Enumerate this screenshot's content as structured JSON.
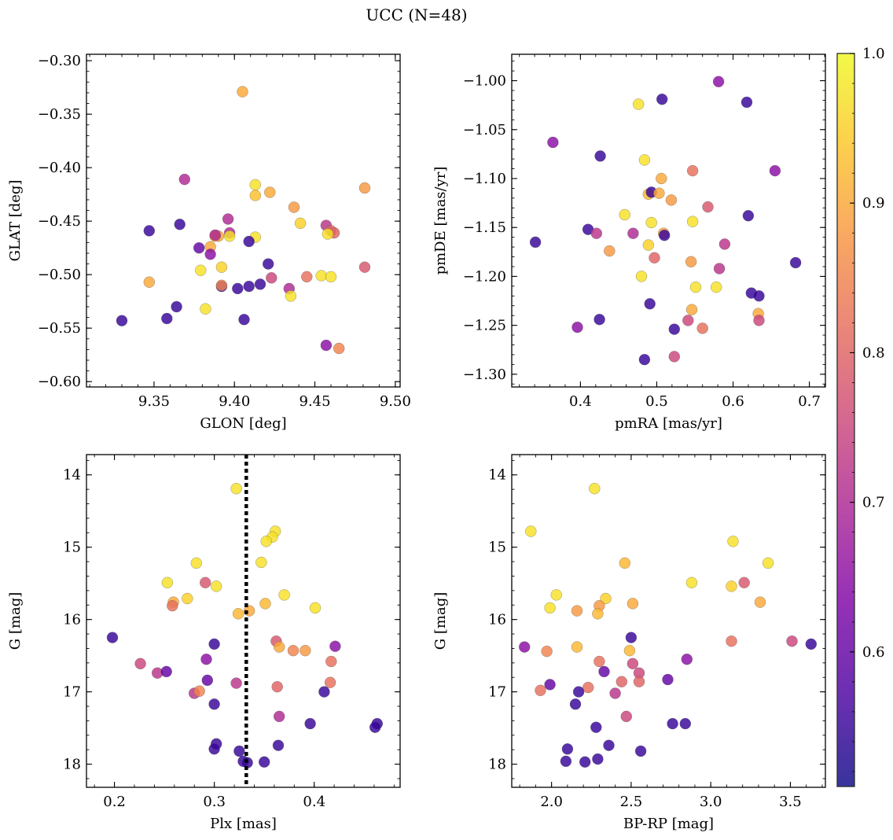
{
  "suptitle": "UCC (N=48)",
  "colorbar": {
    "ticks": [
      0.6,
      0.7,
      0.8,
      0.9,
      1.0
    ],
    "tick_labels": [
      "0.6",
      "0.7",
      "0.8",
      "0.9",
      "1.0"
    ],
    "range": [
      0.51,
      1.0
    ],
    "colormap": "plasma"
  },
  "chart_data": [
    {
      "type": "scatter",
      "xlabel": "GLON [deg]",
      "ylabel": "GLAT [deg]",
      "xlim": [
        9.308,
        9.503
      ],
      "ylim": [
        -0.605,
        -0.294
      ],
      "xticks": [
        9.35,
        9.4,
        9.45,
        9.5
      ],
      "xtick_labels": [
        "9.35",
        "9.40",
        "9.45",
        "9.50"
      ],
      "yticks": [
        -0.3,
        -0.35,
        -0.4,
        -0.45,
        -0.5,
        -0.55,
        -0.6
      ],
      "ytick_labels": [
        "−0.30",
        "−0.35",
        "−0.40",
        "−0.45",
        "−0.50",
        "−0.55",
        "−0.60"
      ],
      "x": [
        9.405,
        9.347,
        9.369,
        9.413,
        9.413,
        9.422,
        9.481,
        9.437,
        9.441,
        9.457,
        9.46,
        9.462,
        9.458,
        9.347,
        9.396,
        9.397,
        9.39,
        9.388,
        9.397,
        9.413,
        9.378,
        9.379,
        9.385,
        9.385,
        9.392,
        9.402,
        9.409,
        9.416,
        9.421,
        9.434,
        9.435,
        9.454,
        9.46,
        9.481,
        9.423,
        9.445,
        9.364,
        9.382,
        9.33,
        9.406,
        9.457,
        9.465,
        9.409,
        9.366,
        9.388,
        9.392,
        9.358,
        9.392
      ],
      "y": [
        -0.329,
        -0.507,
        -0.411,
        -0.416,
        -0.426,
        -0.423,
        -0.419,
        -0.437,
        -0.452,
        -0.454,
        -0.459,
        -0.461,
        -0.462,
        -0.459,
        -0.448,
        -0.461,
        -0.464,
        -0.464,
        -0.464,
        -0.465,
        -0.475,
        -0.496,
        -0.474,
        -0.481,
        -0.511,
        -0.513,
        -0.511,
        -0.509,
        -0.49,
        -0.513,
        -0.52,
        -0.501,
        -0.502,
        -0.493,
        -0.503,
        -0.502,
        -0.53,
        -0.532,
        -0.543,
        -0.542,
        -0.566,
        -0.569,
        -0.469,
        -0.453,
        -0.463,
        -0.493,
        -0.541,
        -0.51
      ],
      "c": [
        0.9,
        0.9,
        0.7,
        0.97,
        0.93,
        0.9,
        0.88,
        0.88,
        0.95,
        0.72,
        0.8,
        0.8,
        0.97,
        0.55,
        0.7,
        0.7,
        0.9,
        0.88,
        0.97,
        0.97,
        0.6,
        0.97,
        0.9,
        0.65,
        0.55,
        0.55,
        0.55,
        0.55,
        0.55,
        0.7,
        0.97,
        0.97,
        0.97,
        0.78,
        0.75,
        0.82,
        0.55,
        0.97,
        0.55,
        0.55,
        0.65,
        0.85,
        0.55,
        0.55,
        0.7,
        0.95,
        0.55,
        0.85
      ]
    },
    {
      "type": "scatter",
      "xlabel": "pmRA [mas/yr]",
      "ylabel": "pmDE [mas/yr]",
      "xlim": [
        0.31,
        0.721
      ],
      "ylim": [
        -1.313,
        -0.973
      ],
      "xticks": [
        0.4,
        0.5,
        0.6,
        0.7
      ],
      "xtick_labels": [
        "0.4",
        "0.5",
        "0.6",
        "0.7"
      ],
      "yticks": [
        -1.0,
        -1.05,
        -1.1,
        -1.15,
        -1.2,
        -1.25,
        -1.3
      ],
      "ytick_labels": [
        "−1.00",
        "−1.05",
        "−1.10",
        "−1.15",
        "−1.20",
        "−1.25",
        "−1.30"
      ],
      "x": [
        0.581,
        0.476,
        0.507,
        0.618,
        0.364,
        0.426,
        0.484,
        0.547,
        0.655,
        0.506,
        0.489,
        0.493,
        0.503,
        0.519,
        0.458,
        0.62,
        0.567,
        0.341,
        0.41,
        0.421,
        0.469,
        0.493,
        0.509,
        0.51,
        0.547,
        0.589,
        0.438,
        0.497,
        0.582,
        0.545,
        0.48,
        0.551,
        0.578,
        0.682,
        0.624,
        0.634,
        0.546,
        0.491,
        0.425,
        0.396,
        0.633,
        0.634,
        0.541,
        0.523,
        0.56,
        0.484,
        0.523,
        0.489
      ],
      "y": [
        -1.001,
        -1.024,
        -1.019,
        -1.022,
        -1.063,
        -1.077,
        -1.081,
        -1.092,
        -1.092,
        -1.1,
        -1.116,
        -1.114,
        -1.115,
        -1.122,
        -1.137,
        -1.138,
        -1.129,
        -1.165,
        -1.152,
        -1.156,
        -1.156,
        -1.145,
        -1.156,
        -1.158,
        -1.144,
        -1.167,
        -1.174,
        -1.181,
        -1.192,
        -1.185,
        -1.2,
        -1.211,
        -1.211,
        -1.186,
        -1.217,
        -1.22,
        -1.234,
        -1.228,
        -1.244,
        -1.252,
        -1.238,
        -1.245,
        -1.245,
        -1.254,
        -1.253,
        -1.285,
        -1.282,
        -1.168
      ],
      "c": [
        0.65,
        0.97,
        0.55,
        0.55,
        0.65,
        0.55,
        0.97,
        0.82,
        0.65,
        0.9,
        0.92,
        0.55,
        0.9,
        0.88,
        0.97,
        0.55,
        0.78,
        0.55,
        0.55,
        0.72,
        0.7,
        0.97,
        0.88,
        0.55,
        0.97,
        0.72,
        0.88,
        0.8,
        0.72,
        0.88,
        0.97,
        0.97,
        0.97,
        0.55,
        0.55,
        0.55,
        0.9,
        0.55,
        0.55,
        0.65,
        0.9,
        0.75,
        0.75,
        0.55,
        0.82,
        0.55,
        0.75,
        0.95
      ]
    },
    {
      "type": "scatter",
      "xlabel": "Plx [mas]",
      "ylabel": "G [mag]",
      "xlim": [
        0.172,
        0.486
      ],
      "ylim": [
        18.32,
        13.72
      ],
      "xticks": [
        0.2,
        0.3,
        0.4
      ],
      "xtick_labels": [
        "0.2",
        "0.3",
        "0.4"
      ],
      "yticks": [
        14,
        15,
        16,
        17,
        18
      ],
      "ytick_labels": [
        "14",
        "15",
        "16",
        "17",
        "18"
      ],
      "vline": 0.332,
      "x": [
        0.322,
        0.361,
        0.358,
        0.352,
        0.347,
        0.253,
        0.282,
        0.291,
        0.302,
        0.259,
        0.258,
        0.273,
        0.37,
        0.401,
        0.351,
        0.324,
        0.335,
        0.362,
        0.365,
        0.391,
        0.379,
        0.417,
        0.421,
        0.198,
        0.3,
        0.226,
        0.243,
        0.252,
        0.292,
        0.363,
        0.293,
        0.28,
        0.285,
        0.3,
        0.416,
        0.41,
        0.322,
        0.365,
        0.396,
        0.463,
        0.461,
        0.302,
        0.3,
        0.325,
        0.364,
        0.35,
        0.329,
        0.333
      ],
      "y": [
        14.19,
        14.78,
        14.86,
        14.92,
        15.21,
        15.49,
        15.22,
        15.49,
        15.54,
        15.76,
        15.81,
        15.71,
        15.66,
        15.84,
        15.78,
        15.92,
        15.88,
        16.3,
        16.38,
        16.43,
        16.43,
        16.58,
        16.37,
        16.25,
        16.34,
        16.61,
        16.74,
        16.72,
        16.55,
        16.93,
        16.84,
        17.02,
        16.99,
        17.17,
        16.87,
        17.0,
        16.88,
        17.34,
        17.44,
        17.44,
        17.49,
        17.72,
        17.79,
        17.82,
        17.74,
        17.97,
        17.96,
        17.98
      ],
      "c": [
        0.97,
        0.97,
        0.97,
        0.97,
        0.97,
        0.97,
        0.97,
        0.78,
        0.97,
        0.9,
        0.82,
        0.95,
        0.97,
        0.97,
        0.92,
        0.92,
        0.9,
        0.78,
        0.9,
        0.88,
        0.85,
        0.82,
        0.65,
        0.55,
        0.55,
        0.75,
        0.72,
        0.6,
        0.65,
        0.8,
        0.6,
        0.72,
        0.85,
        0.55,
        0.82,
        0.55,
        0.72,
        0.7,
        0.55,
        0.55,
        0.55,
        0.55,
        0.55,
        0.55,
        0.55,
        0.55,
        0.55,
        0.55
      ]
    },
    {
      "type": "scatter",
      "xlabel": "BP-RP [mag]",
      "ylabel": "G [mag]",
      "xlim": [
        1.75,
        3.72
      ],
      "ylim": [
        18.32,
        13.72
      ],
      "xticks": [
        2.0,
        2.5,
        3.0,
        3.5
      ],
      "xtick_labels": [
        "2.0",
        "2.5",
        "3.0",
        "3.5"
      ],
      "yticks": [
        14,
        15,
        16,
        17,
        18
      ],
      "ytick_labels": [
        "14",
        "15",
        "16",
        "17",
        "18"
      ],
      "x": [
        2.27,
        1.87,
        3.14,
        2.46,
        3.36,
        2.88,
        3.13,
        3.21,
        2.03,
        2.34,
        1.99,
        2.3,
        2.16,
        3.31,
        2.51,
        2.29,
        2.16,
        1.83,
        2.5,
        2.49,
        3.51,
        3.13,
        3.63,
        2.51,
        2.55,
        2.85,
        2.33,
        2.3,
        1.99,
        2.55,
        2.23,
        2.44,
        2.73,
        2.4,
        1.93,
        2.17,
        2.47,
        2.76,
        2.84,
        2.28,
        2.15,
        2.1,
        2.56,
        2.36,
        2.09,
        2.29,
        2.21,
        1.97
      ],
      "y": [
        14.19,
        14.78,
        14.92,
        15.22,
        15.22,
        15.49,
        15.54,
        15.49,
        15.66,
        15.71,
        15.84,
        15.81,
        15.88,
        15.76,
        15.78,
        15.92,
        16.38,
        16.38,
        16.25,
        16.43,
        16.3,
        16.3,
        16.34,
        16.61,
        16.74,
        16.55,
        16.72,
        16.58,
        16.9,
        16.86,
        16.94,
        16.86,
        16.83,
        17.02,
        16.98,
        17.0,
        17.34,
        17.44,
        17.44,
        17.49,
        17.17,
        17.79,
        17.82,
        17.74,
        17.96,
        17.93,
        17.97,
        16.44
      ],
      "c": [
        0.97,
        0.97,
        0.97,
        0.92,
        0.97,
        0.97,
        0.95,
        0.78,
        0.97,
        0.95,
        0.97,
        0.88,
        0.88,
        0.9,
        0.9,
        0.92,
        0.92,
        0.65,
        0.55,
        0.92,
        0.75,
        0.82,
        0.55,
        0.75,
        0.75,
        0.65,
        0.6,
        0.82,
        0.6,
        0.8,
        0.82,
        0.8,
        0.6,
        0.72,
        0.82,
        0.55,
        0.75,
        0.55,
        0.55,
        0.55,
        0.55,
        0.55,
        0.55,
        0.55,
        0.55,
        0.55,
        0.55,
        0.85
      ]
    }
  ]
}
